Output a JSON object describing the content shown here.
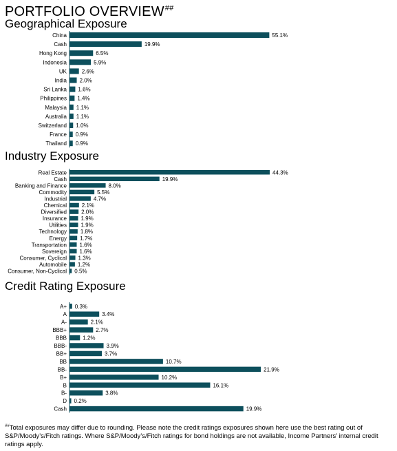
{
  "title": "PORTFOLIO OVERVIEW",
  "title_marker": "##",
  "colors": {
    "bar": "#0d4f5c"
  },
  "chart_data": [
    {
      "type": "bar",
      "orientation": "horizontal",
      "title": "Geographical Exposure",
      "categories": [
        "China",
        "Cash",
        "Hong Kong",
        "Indonesia",
        "UK",
        "India",
        "Sri Lanka",
        "Philippines",
        "Malaysia",
        "Australia",
        "Switzerland",
        "France",
        "Thailand"
      ],
      "values": [
        55.1,
        19.9,
        6.5,
        5.9,
        2.6,
        2.0,
        1.6,
        1.4,
        1.1,
        1.1,
        1.0,
        0.9,
        0.9
      ],
      "value_labels": [
        "55.1%",
        "19.9%",
        "6.5%",
        "5.9%",
        "2.6%",
        "2.0%",
        "1.6%",
        "1.4%",
        "1.1%",
        "1.1%",
        "1.0%",
        "0.9%",
        "0.9%"
      ],
      "grid": false
    },
    {
      "type": "bar",
      "orientation": "horizontal",
      "title": "Industry Exposure",
      "categories": [
        "Real Estate",
        "Cash",
        "Banking and Finance",
        "Commodity",
        "Industrial",
        "Chemical",
        "Diversified",
        "Insurance",
        "Utilities",
        "Technology",
        "Energy",
        "Transportation",
        "Sovereign",
        "Consumer, Cyclical",
        "Automobile",
        "Consumer, Non-Cyclical"
      ],
      "values": [
        44.3,
        19.9,
        8.0,
        5.5,
        4.7,
        2.1,
        2.0,
        1.9,
        1.9,
        1.8,
        1.7,
        1.6,
        1.6,
        1.3,
        1.2,
        0.5
      ],
      "value_labels": [
        "44.3%",
        "19.9%",
        "8.0%",
        "5.5%",
        "4.7%",
        "2.1%",
        "2.0%",
        "1.9%",
        "1.9%",
        "1.8%",
        "1.7%",
        "1.6%",
        "1.6%",
        "1.3%",
        "1.2%",
        "0.5%"
      ],
      "grid": false
    },
    {
      "type": "bar",
      "orientation": "horizontal",
      "title": "Credit Rating Exposure",
      "categories": [
        "A+",
        "A",
        "A-",
        "BBB+",
        "BBB",
        "BBB-",
        "BB+",
        "BB",
        "BB-",
        "B+",
        "B",
        "B-",
        "D",
        "Cash"
      ],
      "values": [
        0.3,
        3.4,
        2.1,
        2.7,
        1.2,
        3.9,
        3.7,
        10.7,
        21.9,
        10.2,
        16.1,
        3.8,
        0.2,
        19.9
      ],
      "value_labels": [
        "0.3%",
        "3.4%",
        "2.1%",
        "2.7%",
        "1.2%",
        "3.9%",
        "3.7%",
        "10.7%",
        "21.9%",
        "10.2%",
        "16.1%",
        "3.8%",
        "0.2%",
        "19.9%"
      ],
      "grid": false
    }
  ],
  "footnote": {
    "marker": "##",
    "text": "Total exposures may differ due to rounding. Please note the credit ratings exposures shown here use the best rating out of S&P/Moody’s/Fitch ratings. Where S&P/Moody’s/Fitch ratings for bond holdings are not available, Income Partners’ internal credit ratings apply."
  }
}
